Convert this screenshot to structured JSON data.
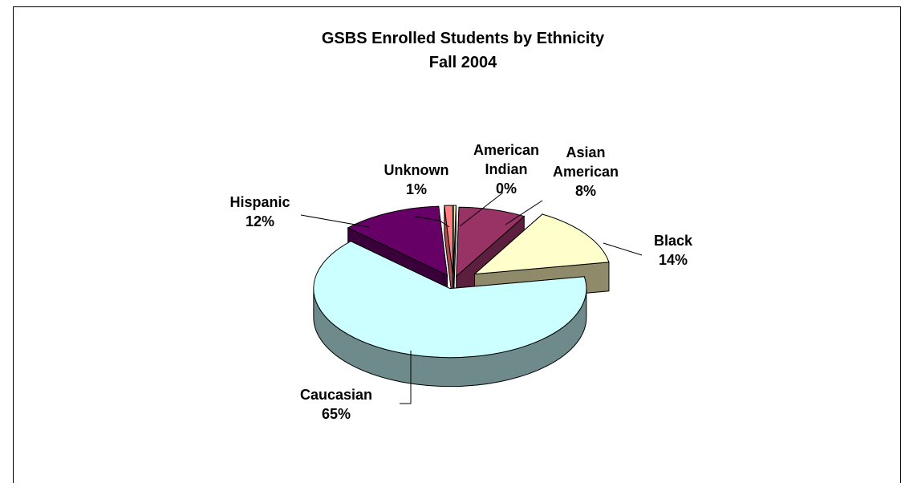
{
  "chart_data": {
    "type": "pie",
    "title": "GSBS Enrolled Students by Ethnicity",
    "subtitle": "Fall 2004",
    "slices": [
      {
        "label_lines": [
          "American",
          "Indian"
        ],
        "percent_label": "0%",
        "value": 0.3,
        "top_color": "#f4f0b8",
        "side_color": "#a8a47a"
      },
      {
        "label_lines": [
          "Asian",
          "American"
        ],
        "percent_label": "8%",
        "value": 8,
        "top_color": "#993366",
        "side_color": "#5c1f3d"
      },
      {
        "label_lines": [
          "Black"
        ],
        "percent_label": "14%",
        "value": 14,
        "top_color": "#ffffcc",
        "side_color": "#8f8a6a"
      },
      {
        "label_lines": [
          "Caucasian"
        ],
        "percent_label": "65%",
        "value": 65,
        "top_color": "#ccffff",
        "side_color": "#6e8a8a"
      },
      {
        "label_lines": [
          "Hispanic"
        ],
        "percent_label": "12%",
        "value": 12,
        "top_color": "#660066",
        "side_color": "#3a003a"
      },
      {
        "label_lines": [
          "Unknown"
        ],
        "percent_label": "1%",
        "value": 1,
        "top_color": "#ff8080",
        "side_color": "#a85050"
      }
    ],
    "three_d": true,
    "exploded": true,
    "legend": "none"
  }
}
